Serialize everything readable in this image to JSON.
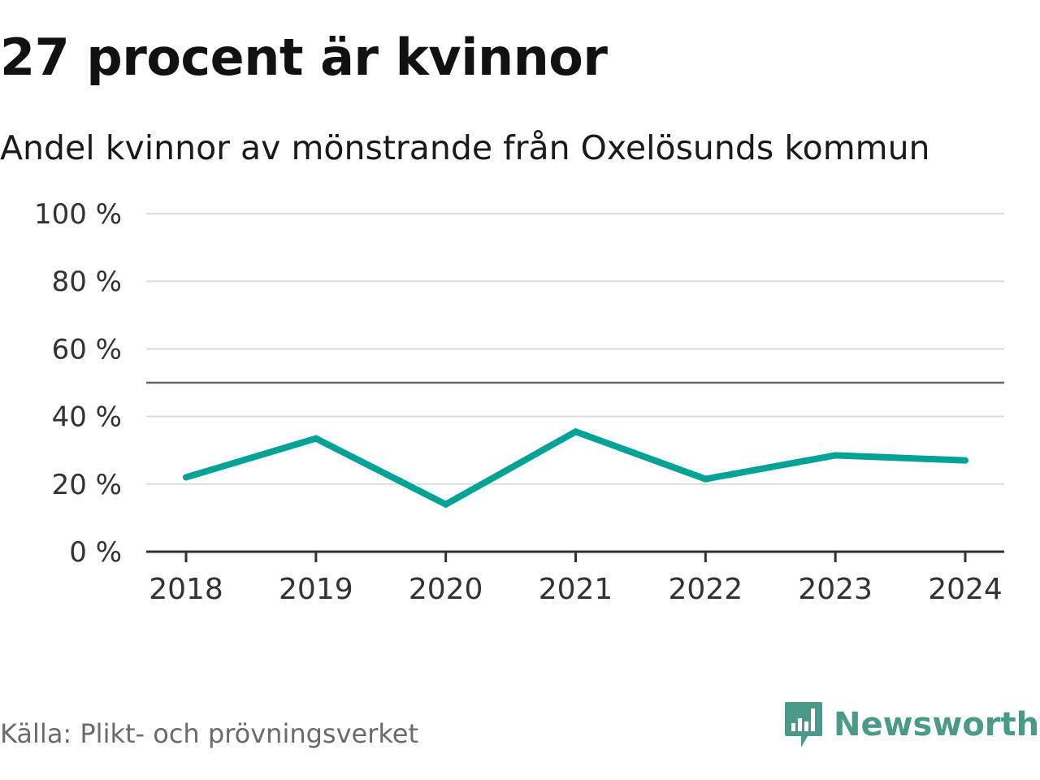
{
  "title": "27 procent är kvinnor",
  "subtitle": "Andel kvinnor av mönstrande från Oxelösunds kommun",
  "source": "Källa: Plikt- och prövningsverket",
  "brand": "Newsworthy",
  "colors": {
    "line": "#00a396",
    "grid": "#dddddd",
    "reference": "#666666",
    "brand": "#4a9a8a"
  },
  "chart_data": {
    "type": "line",
    "title": "27 procent är kvinnor",
    "subtitle": "Andel kvinnor av mönstrande från Oxelösunds kommun",
    "categories": [
      "2018",
      "2019",
      "2020",
      "2021",
      "2022",
      "2023",
      "2024"
    ],
    "series": [
      {
        "name": "Andel kvinnor",
        "values": [
          22,
          33.5,
          14,
          35.5,
          21.5,
          28.5,
          27
        ]
      }
    ],
    "yticks": [
      0,
      20,
      40,
      60,
      80,
      100
    ],
    "ytick_labels": [
      "0 %",
      "20 %",
      "40 %",
      "60 %",
      "80 %",
      "100 %"
    ],
    "ylim": [
      0,
      100
    ],
    "reference_line": 50,
    "grid": true,
    "xlabel": "",
    "ylabel": ""
  }
}
